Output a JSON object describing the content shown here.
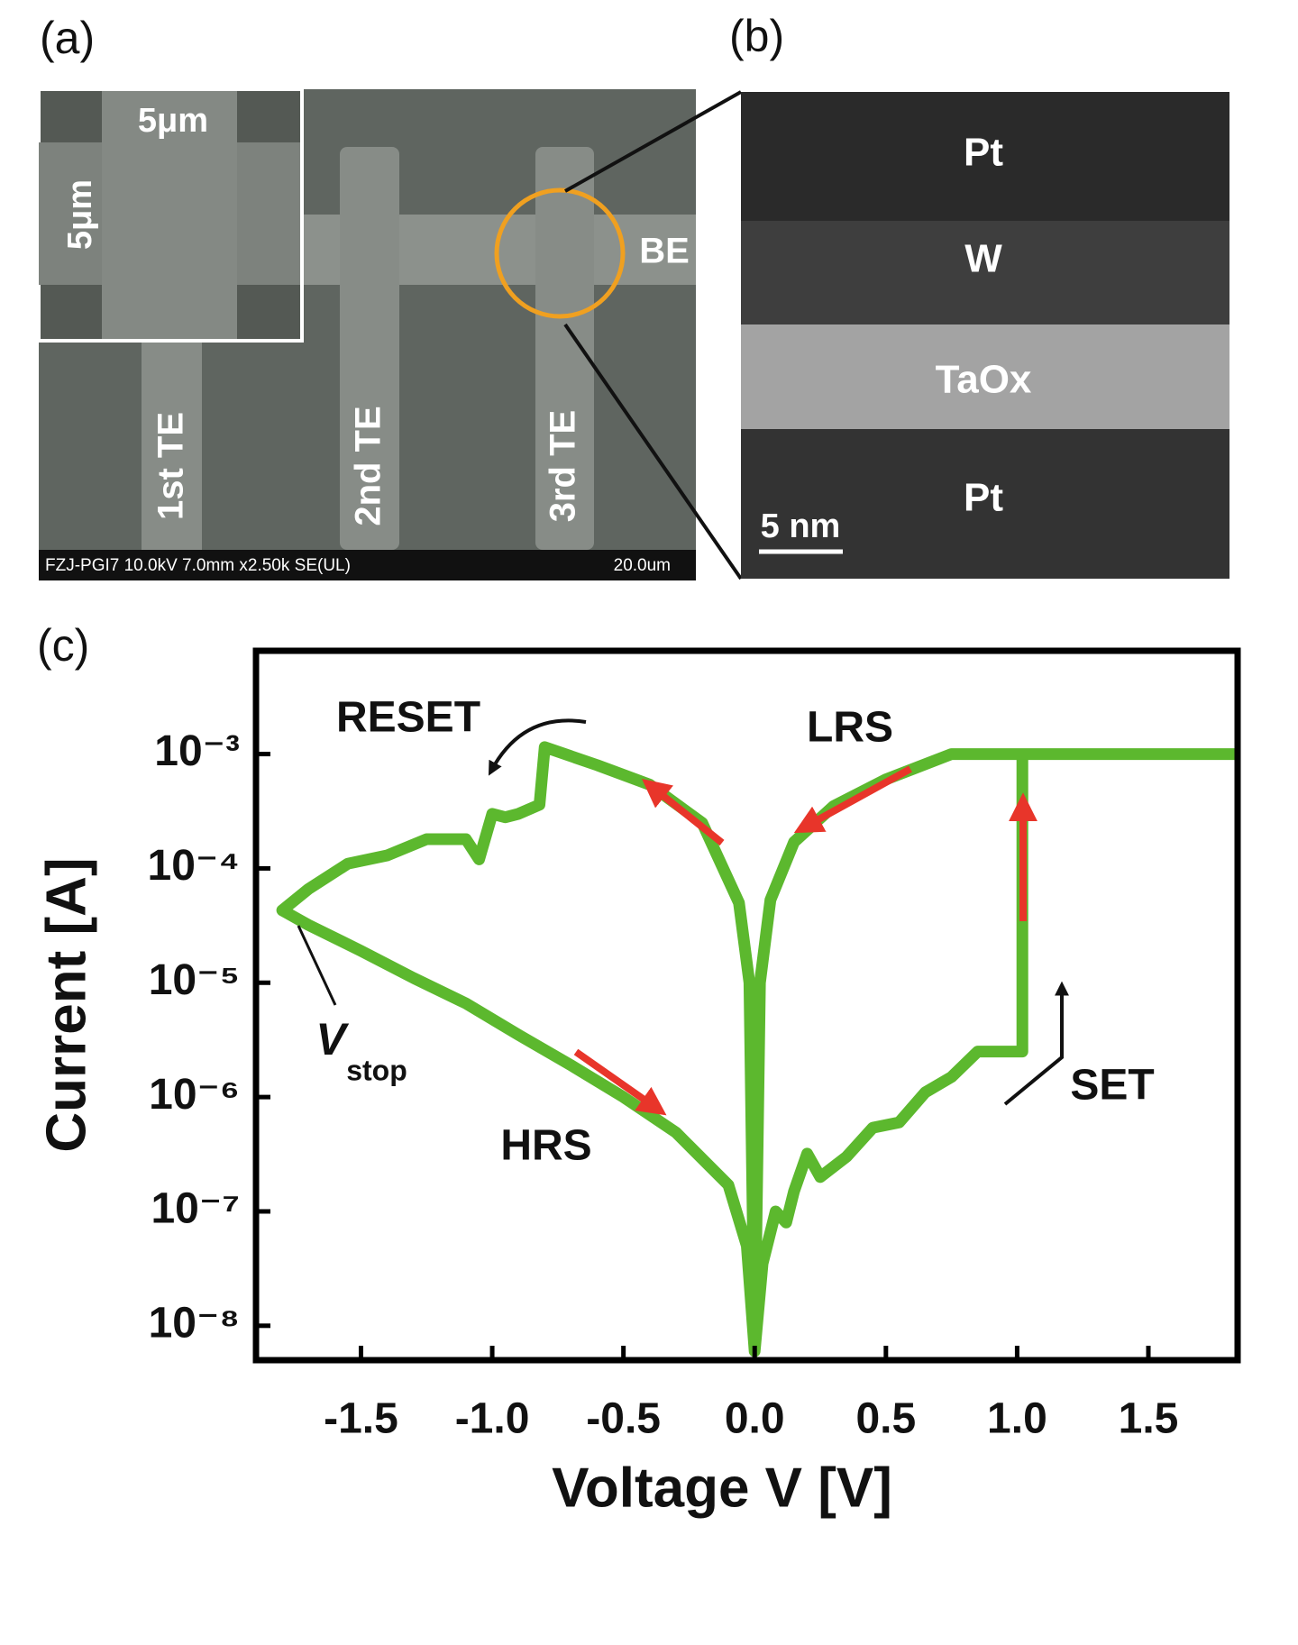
{
  "panels": {
    "a": {
      "label": "(a)",
      "inset_width": "5μm",
      "inset_height": "5μm",
      "electrodes": [
        "1st TE",
        "2nd TE",
        "3rd TE"
      ],
      "bottom_electrode": "BE",
      "info": "FZJ-PGI7 10.0kV 7.0mm x2.50k SE(UL)",
      "scale": "20.0um"
    },
    "b": {
      "label": "(b)",
      "layers": [
        "Pt",
        "W",
        "TaOx",
        "Pt"
      ],
      "scale": "5 nm"
    }
  },
  "chart_data": {
    "type": "line",
    "panel_label": "(c)",
    "x_label": "Voltage V [V]",
    "y_label": "Current [A]",
    "xlim": [
      -1.9,
      1.84
    ],
    "ylim": [
      5e-09,
      0.008
    ],
    "yscale": "log",
    "xticks": [
      -1.5,
      {
        "value": -1,
        "label": "-1.0"
      },
      -0.5,
      {
        "value": 0,
        "label": "0.0"
      },
      0.5,
      {
        "value": 1,
        "label": "1.0"
      },
      1.5
    ],
    "yticks": [
      {
        "value": 0.001,
        "label": "10⁻³"
      },
      {
        "value": 0.0001,
        "label": "10⁻⁴"
      },
      {
        "value": 1e-05,
        "label": "10⁻⁵"
      },
      {
        "value": 1e-06,
        "label": "10⁻⁶"
      },
      {
        "value": 1e-07,
        "label": "10⁻⁷"
      },
      {
        "value": 1e-08,
        "label": "10⁻⁸"
      }
    ],
    "series": [
      {
        "color": "#5cb82e",
        "x": [
          0,
          0.03,
          0.08,
          0.12,
          0.15,
          0.2,
          0.25,
          0.35,
          0.45,
          0.55,
          0.65,
          0.75,
          0.85,
          0.92,
          1.02,
          1.02,
          1.84,
          0.75,
          0.5,
          0.3,
          0.15,
          0.06,
          0.02,
          0,
          -0.02,
          -0.06,
          -0.2,
          -0.4,
          -0.6,
          -0.8,
          -0.82,
          -0.9,
          -0.95,
          -1.0,
          -1.05,
          -1.1,
          -1.25,
          -1.4,
          -1.55,
          -1.7,
          -1.8,
          -1.7,
          -1.5,
          -1.3,
          -1.1,
          -0.9,
          -0.7,
          -0.5,
          -0.3,
          -0.1,
          -0.03,
          0
        ],
        "values": [
          6e-09,
          3.5e-08,
          1e-07,
          8e-08,
          1.5e-07,
          3.2e-07,
          2e-07,
          3e-07,
          5.4e-07,
          6e-07,
          1.1e-06,
          1.5e-06,
          2.5e-06,
          2.5e-06,
          2.5e-06,
          0.001,
          0.001,
          0.001,
          0.0006,
          0.00035,
          0.00017,
          5.3e-05,
          1e-05,
          6e-09,
          1e-05,
          5e-05,
          0.00025,
          0.00054,
          0.0008,
          0.00115,
          0.00036,
          0.0003,
          0.00028,
          0.0003,
          0.00012,
          0.00018,
          0.00018,
          0.00013,
          0.00011,
          6.6e-05,
          4.3e-05,
          3.2e-05,
          1.9e-05,
          1.1e-05,
          6.6e-06,
          3.5e-06,
          1.9e-06,
          1e-06,
          4.9e-07,
          1.7e-07,
          5e-08,
          6e-09
        ]
      }
    ],
    "annotations": {
      "reset": "RESET",
      "lrs": "LRS",
      "hrs": "HRS",
      "set": "SET",
      "v_stop": "V",
      "v_stop_sub": "stop"
    }
  }
}
